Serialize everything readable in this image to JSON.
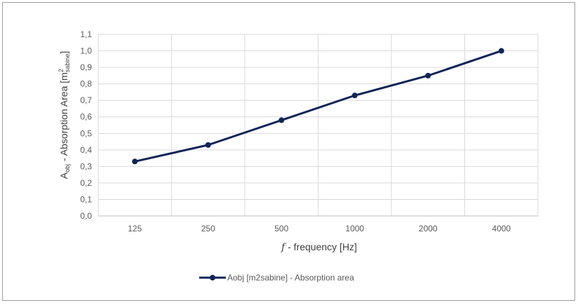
{
  "chart_data": {
    "type": "line",
    "categories": [
      "125",
      "250",
      "500",
      "1000",
      "2000",
      "4000"
    ],
    "series": [
      {
        "name": "Aobj [m2sabine] - Absorption area",
        "values": [
          0.33,
          0.43,
          0.58,
          0.73,
          0.85,
          1.0
        ],
        "color": "#0f2557"
      }
    ],
    "xlabel": {
      "italic": "f",
      "text": " - frequency [Hz]"
    },
    "ylabel": {
      "main": "A",
      "sub": "obj",
      "rest": " - Absorption Area [m",
      "sup": "2",
      "sub2": "sabine",
      "end": "]"
    },
    "ylim": [
      0,
      1.1
    ],
    "yticks": [
      "0,0",
      "0,1",
      "0,2",
      "0,3",
      "0,4",
      "0,5",
      "0,6",
      "0,7",
      "0,8",
      "0,9",
      "1,0",
      "1,1"
    ],
    "grid": true,
    "legend_position": "bottom"
  }
}
